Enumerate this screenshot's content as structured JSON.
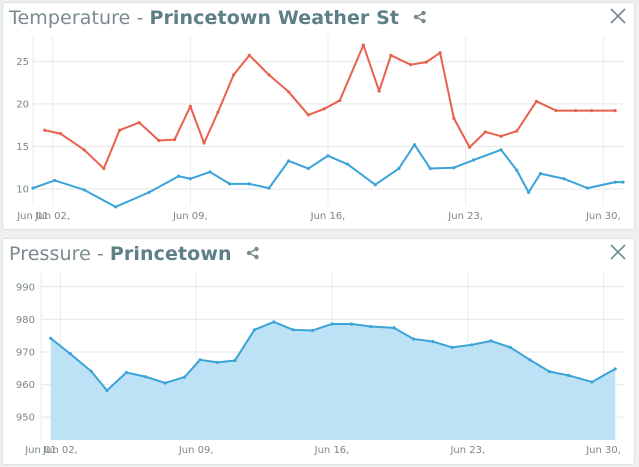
{
  "panels": [
    {
      "title_metric": "Temperature",
      "title_sep": "-",
      "title_station": "Princetown Weather St",
      "close_icon": "close-icon",
      "share_icon": "share-icon"
    },
    {
      "title_metric": "Pressure",
      "title_sep": "-",
      "title_station": "Princetown",
      "close_icon": "close-icon",
      "share_icon": "share-icon"
    }
  ],
  "chart_data": [
    {
      "type": "line",
      "x_tick_labels": [
        "Jun 01",
        "Jun 02,",
        "Jun 09,",
        "Jun 16,",
        "Jun 23,",
        "Jun 30,"
      ],
      "x_tick_days": [
        1,
        2,
        9,
        16,
        23,
        30
      ],
      "y_ticks": [
        10,
        15,
        20,
        25
      ],
      "ylim": [
        8,
        27.5
      ],
      "xlim": [
        1,
        31
      ],
      "grid": true,
      "series": [
        {
          "color": "#e8614e",
          "x": [
            1.6,
            2.4,
            3.6,
            4.6,
            5.4,
            6.4,
            7.4,
            8.2,
            9.0,
            9.7,
            10.4,
            11.2,
            12.0,
            13.0,
            14.0,
            15.0,
            15.8,
            16.6,
            17.8,
            18.6,
            19.2,
            20.2,
            21.0,
            21.7,
            22.4,
            23.2,
            24.0,
            24.8,
            25.6,
            26.6,
            27.6,
            28.6,
            29.4,
            30.6
          ],
          "y": [
            16.9,
            16.5,
            14.6,
            12.4,
            16.9,
            17.8,
            15.7,
            15.8,
            19.7,
            15.4,
            19.0,
            23.4,
            25.7,
            23.4,
            21.4,
            18.7,
            19.4,
            20.4,
            26.9,
            21.5,
            25.7,
            24.6,
            24.9,
            26.0,
            18.3,
            14.9,
            16.7,
            16.2,
            16.8,
            20.3,
            19.2,
            19.2,
            19.2,
            19.2
          ]
        },
        {
          "color": "#3aa3d8",
          "x": [
            1.0,
            2.1,
            3.6,
            5.2,
            6.9,
            8.4,
            9.0,
            10.0,
            11.0,
            12.0,
            13.0,
            14.0,
            15.0,
            16.0,
            17.0,
            18.4,
            19.6,
            20.4,
            21.2,
            22.4,
            23.4,
            24.8,
            25.6,
            26.2,
            26.8,
            28.0,
            29.2,
            30.6,
            31.0
          ],
          "y": [
            10.1,
            11.0,
            9.9,
            7.9,
            9.6,
            11.5,
            11.2,
            12.0,
            10.6,
            10.6,
            10.1,
            13.3,
            12.4,
            13.9,
            12.9,
            10.5,
            12.4,
            15.2,
            12.4,
            12.5,
            13.4,
            14.6,
            12.2,
            9.6,
            11.8,
            11.2,
            10.1,
            10.8,
            10.8
          ]
        }
      ]
    },
    {
      "type": "area",
      "x_tick_labels": [
        "Jun 01",
        "Jun 02,",
        "Jun 09,",
        "Jun 16,",
        "Jun 23,",
        "Jun 30,"
      ],
      "x_tick_days": [
        1,
        2,
        9,
        16,
        23,
        30
      ],
      "y_ticks": [
        950,
        960,
        970,
        980,
        990
      ],
      "ylim": [
        943,
        993
      ],
      "xlim": [
        1,
        31
      ],
      "grid": true,
      "series": [
        {
          "color": "#3aa3d8",
          "fill": "#bde2f5",
          "x": [
            1.5,
            2.5,
            3.6,
            4.4,
            5.4,
            6.4,
            7.4,
            8.4,
            9.2,
            10.1,
            11.0,
            12.0,
            13.0,
            14.0,
            15.0,
            16.0,
            17.0,
            18.0,
            19.2,
            20.2,
            21.2,
            22.2,
            23.2,
            24.2,
            25.2,
            26.2,
            27.2,
            28.2,
            29.4,
            30.6
          ],
          "y": [
            974.2,
            969.5,
            964.0,
            958.2,
            963.7,
            962.4,
            960.5,
            962.3,
            967.6,
            966.8,
            967.4,
            976.8,
            979.2,
            976.8,
            976.6,
            978.6,
            978.6,
            977.8,
            977.4,
            974.0,
            973.2,
            971.4,
            972.2,
            973.4,
            971.4,
            967.6,
            964.0,
            962.8,
            960.8,
            964.8
          ]
        }
      ]
    }
  ]
}
